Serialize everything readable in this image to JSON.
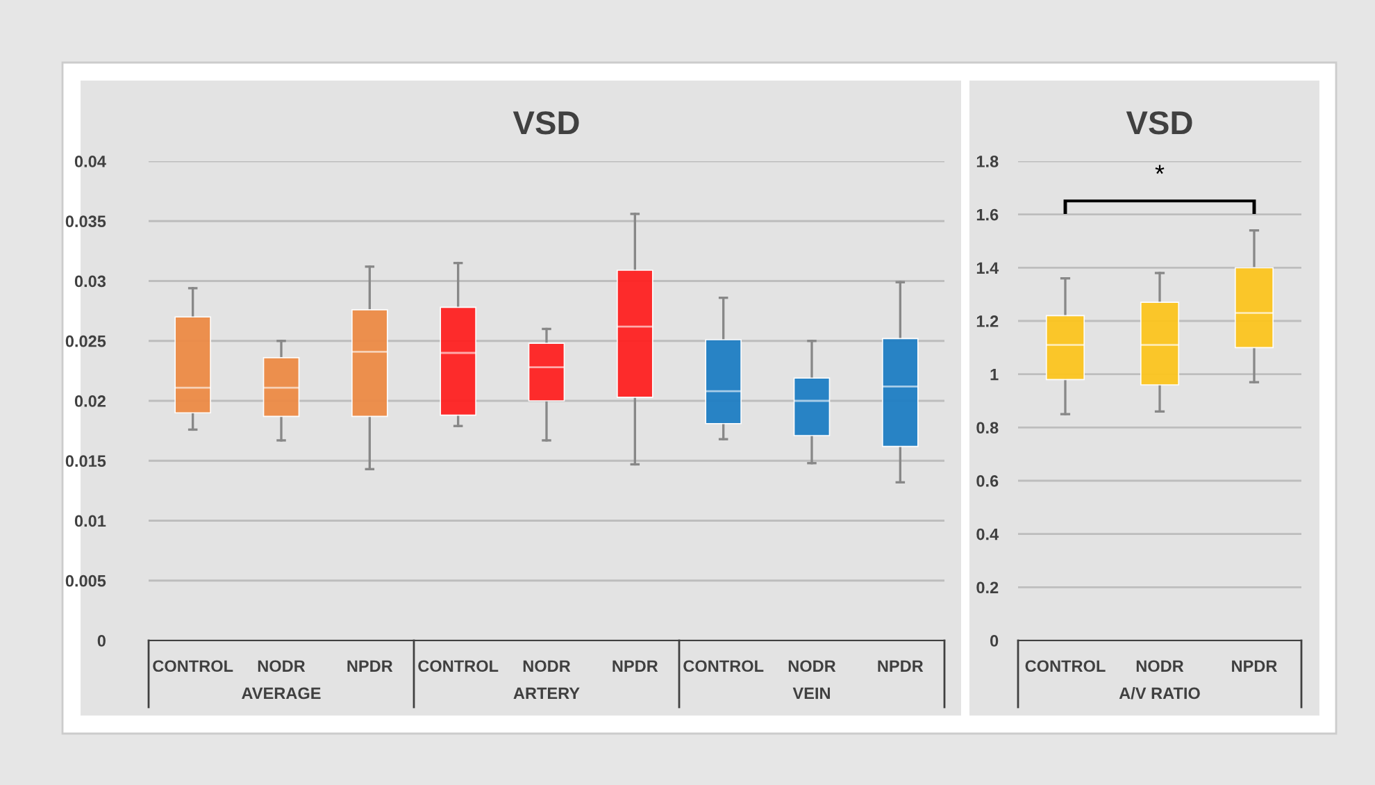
{
  "chart_data": [
    {
      "type": "box",
      "title": "VSD",
      "categories": [
        "CONTROL",
        "NODR",
        "NPDR",
        "CONTROL",
        "NODR",
        "NPDR",
        "CONTROL",
        "NODR",
        "NPDR"
      ],
      "colors": [
        "#ed8b46",
        "#ed8b46",
        "#ed8b46",
        "#ff2222",
        "#ff2222",
        "#ff2222",
        "#1f7ec4",
        "#1f7ec4",
        "#1f7ec4"
      ],
      "boxes": [
        {
          "low": 0.0176,
          "q1": 0.019,
          "median": 0.0211,
          "q3": 0.027,
          "high": 0.0294
        },
        {
          "low": 0.0167,
          "q1": 0.0187,
          "median": 0.0211,
          "q3": 0.0236,
          "high": 0.025
        },
        {
          "low": 0.0143,
          "q1": 0.0187,
          "median": 0.0241,
          "q3": 0.0276,
          "high": 0.0312
        },
        {
          "low": 0.0179,
          "q1": 0.0188,
          "median": 0.024,
          "q3": 0.0278,
          "high": 0.0315
        },
        {
          "low": 0.0167,
          "q1": 0.02,
          "median": 0.0228,
          "q3": 0.0248,
          "high": 0.026
        },
        {
          "low": 0.0147,
          "q1": 0.0203,
          "median": 0.0262,
          "q3": 0.0309,
          "high": 0.0356
        },
        {
          "low": 0.0168,
          "q1": 0.0181,
          "median": 0.0208,
          "q3": 0.0251,
          "high": 0.0286
        },
        {
          "low": 0.0148,
          "q1": 0.0171,
          "median": 0.02,
          "q3": 0.0219,
          "high": 0.025
        },
        {
          "low": 0.0132,
          "q1": 0.0162,
          "median": 0.0212,
          "q3": 0.0252,
          "high": 0.0299
        }
      ],
      "ylim": [
        0,
        0.04
      ],
      "yticks": [
        0,
        0.005,
        0.01,
        0.015,
        0.02,
        0.025,
        0.03,
        0.035,
        0.04
      ],
      "grid": "y",
      "annotations": [
        "AVERAGE",
        "ARTERY",
        "VEIN"
      ]
    },
    {
      "type": "box",
      "title": "VSD",
      "categories": [
        "CONTROL",
        "NODR",
        "NPDR"
      ],
      "colors": [
        "#fcc520",
        "#fcc520",
        "#fcc520"
      ],
      "boxes": [
        {
          "low": 0.85,
          "q1": 0.98,
          "median": 1.11,
          "q3": 1.22,
          "high": 1.36
        },
        {
          "low": 0.86,
          "q1": 0.96,
          "median": 1.11,
          "q3": 1.27,
          "high": 1.38
        },
        {
          "low": 0.97,
          "q1": 1.1,
          "median": 1.23,
          "q3": 1.4,
          "high": 1.54
        }
      ],
      "ylim": [
        0,
        1.8
      ],
      "yticks": [
        0,
        0.2,
        0.4,
        0.6,
        0.8,
        1,
        1.2,
        1.4,
        1.6,
        1.8
      ],
      "grid": "y",
      "xlabel": "A/V RATIO",
      "annotations": [
        "*"
      ]
    }
  ]
}
